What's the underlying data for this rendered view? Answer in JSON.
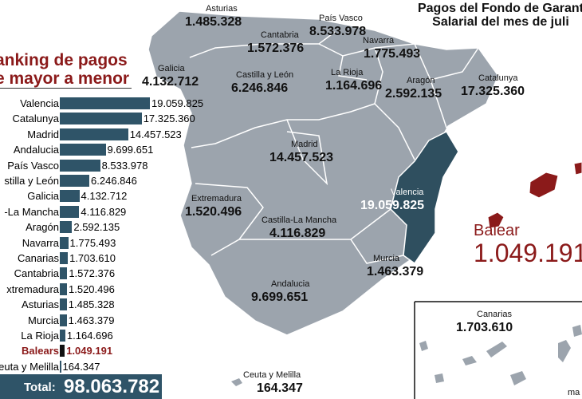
{
  "header": {
    "title_line1": "Pagos del Fondo de Garant",
    "title_line2": "Salarial del mes de juli"
  },
  "ranking": {
    "title_line1": "anking de pagos",
    "title_line2": "e mayor a menor",
    "total_label": "Total:",
    "total_value": "98.063.782"
  },
  "colors": {
    "bar": "#2f5468",
    "highlight": "#8b1a1a",
    "region": "#9ca4ad",
    "valencia": "#2f4f5f",
    "baleares": "#8b1a1a"
  },
  "chart_data": {
    "type": "bar",
    "orientation": "horizontal",
    "categories": [
      "Valencia",
      "Catalunya",
      "Madrid",
      "Andalucia",
      "País Vasco",
      "stilla y León",
      "Galicia",
      "-La Mancha",
      "Aragón",
      "Navarra",
      "Canarias",
      "Cantabria",
      "xtremadura",
      "Asturias",
      "Murcia",
      "La Rioja",
      "Balears",
      "euta y Melilla"
    ],
    "values": [
      19059825,
      17325360,
      14457523,
      9699651,
      8533978,
      6246846,
      4132712,
      4116829,
      2592135,
      1775493,
      1703610,
      1572376,
      1520496,
      1485328,
      1463379,
      1164696,
      1049191,
      164347
    ],
    "labels": [
      "19.059.825",
      "17.325.360",
      "14.457.523",
      "9.699.651",
      "8.533.978",
      "6.246.846",
      "4.132.712",
      "4.116.829",
      "2.592.135",
      "1.775.493",
      "1.703.610",
      "1.572.376",
      "1.520.496",
      "1.485.328",
      "1.463.379",
      "1.164.696",
      "1.049.191",
      "164.347"
    ],
    "highlight": "Balears"
  },
  "map": {
    "regions": [
      {
        "name": "Asturias",
        "value": "1.485.328"
      },
      {
        "name": "Galicia",
        "value": "4.132.712"
      },
      {
        "name": "Cantabria",
        "value": "1.572.376"
      },
      {
        "name": "País Vasco",
        "value": "8.533.978"
      },
      {
        "name": "Navarra",
        "value": "1.775.493"
      },
      {
        "name": "La Rioja",
        "value": "1.164.696"
      },
      {
        "name": "Castilla y León",
        "value": "6.246.846"
      },
      {
        "name": "Aragón",
        "value": "2.592.135"
      },
      {
        "name": "Catalunya",
        "value": "17.325.360"
      },
      {
        "name": "Madrid",
        "value": "14.457.523"
      },
      {
        "name": "Extremadura",
        "value": "1.520.496"
      },
      {
        "name": "Valencia",
        "value": "19.059.825"
      },
      {
        "name": "Castilla-La Mancha",
        "value": "4.116.829"
      },
      {
        "name": "Murcia",
        "value": "1.463.379"
      },
      {
        "name": "Andalucia",
        "value": "9.699.651"
      },
      {
        "name": "Ceuta y Melilla",
        "value": "164.347"
      },
      {
        "name": "Canarias",
        "value": "1.703.610"
      }
    ],
    "baleares": {
      "name": "Balear",
      "value": "1.049.191"
    },
    "cutoff_label": "ma"
  }
}
